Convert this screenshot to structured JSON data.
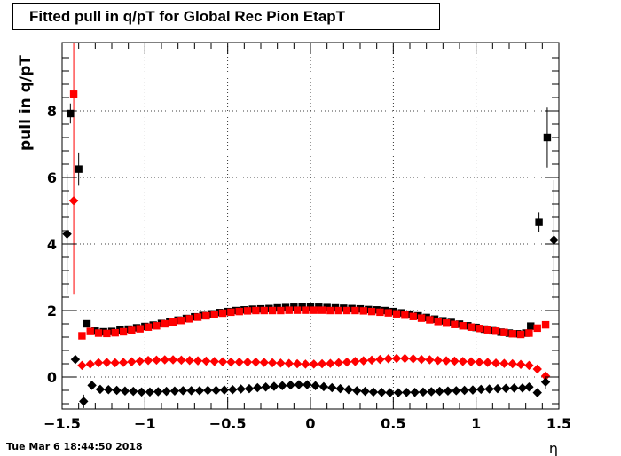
{
  "header": {
    "title": "Fitted pull in q/pT for Global Rec Pion EtapT"
  },
  "footer": {
    "timestamp": "Tue Mar  6 18:44:50 2018"
  },
  "chart_data": {
    "type": "scatter",
    "title": "Fitted pull in q/pT for Global Rec Pion EtapT",
    "xlabel": "η",
    "ylabel": "pull in q/pT",
    "xlim": [
      -1.5,
      1.5
    ],
    "ylim": [
      -0.95,
      10.0
    ],
    "xticks": [
      -1.5,
      -1,
      -0.5,
      0,
      0.5,
      1,
      1.5
    ],
    "xtick_labels": [
      "−1.5",
      "−1",
      "−0.5",
      "0",
      "0.5",
      "1",
      "1.5"
    ],
    "yticks": [
      0,
      2,
      4,
      6,
      8
    ],
    "ytick_labels": [
      "0",
      "2",
      "4",
      "6",
      "8"
    ],
    "grid": true,
    "series": [
      {
        "marker": "square",
        "color": "#000000",
        "points": [
          [
            -1.45,
            7.92,
            0.3
          ],
          [
            -1.4,
            6.25,
            0.5
          ],
          [
            -1.35,
            1.6,
            0
          ],
          [
            -1.3,
            1.38,
            0
          ],
          [
            -1.25,
            1.36,
            0
          ],
          [
            -1.2,
            1.37,
            0
          ],
          [
            -1.15,
            1.41,
            0
          ],
          [
            -1.1,
            1.44,
            0
          ],
          [
            -1.05,
            1.48,
            0
          ],
          [
            -1.0,
            1.52,
            0
          ],
          [
            -0.95,
            1.56,
            0
          ],
          [
            -0.9,
            1.61,
            0
          ],
          [
            -0.85,
            1.66,
            0
          ],
          [
            -0.8,
            1.71,
            0
          ],
          [
            -0.75,
            1.76,
            0
          ],
          [
            -0.7,
            1.81,
            0
          ],
          [
            -0.65,
            1.85,
            0
          ],
          [
            -0.6,
            1.9,
            0
          ],
          [
            -0.55,
            1.94,
            0
          ],
          [
            -0.5,
            1.97,
            0
          ],
          [
            -0.45,
            2.0,
            0
          ],
          [
            -0.4,
            2.02,
            0
          ],
          [
            -0.35,
            2.04,
            0
          ],
          [
            -0.3,
            2.05,
            0
          ],
          [
            -0.25,
            2.06,
            0
          ],
          [
            -0.2,
            2.08,
            0
          ],
          [
            -0.15,
            2.09,
            0
          ],
          [
            -0.1,
            2.1,
            0
          ],
          [
            -0.05,
            2.11,
            0
          ],
          [
            0.0,
            2.11,
            0
          ],
          [
            0.05,
            2.1,
            0
          ],
          [
            0.1,
            2.09,
            0
          ],
          [
            0.15,
            2.08,
            0
          ],
          [
            0.2,
            2.07,
            0
          ],
          [
            0.25,
            2.06,
            0
          ],
          [
            0.3,
            2.05,
            0
          ],
          [
            0.35,
            2.03,
            0
          ],
          [
            0.4,
            2.02,
            0
          ],
          [
            0.45,
            2.0,
            0
          ],
          [
            0.5,
            1.97,
            0
          ],
          [
            0.55,
            1.93,
            0
          ],
          [
            0.6,
            1.89,
            0
          ],
          [
            0.65,
            1.84,
            0
          ],
          [
            0.7,
            1.79,
            0
          ],
          [
            0.75,
            1.74,
            0
          ],
          [
            0.8,
            1.69,
            0
          ],
          [
            0.85,
            1.64,
            0
          ],
          [
            0.9,
            1.59,
            0
          ],
          [
            0.95,
            1.54,
            0
          ],
          [
            1.0,
            1.49,
            0
          ],
          [
            1.05,
            1.44,
            0
          ],
          [
            1.1,
            1.39,
            0
          ],
          [
            1.15,
            1.35,
            0
          ],
          [
            1.2,
            1.32,
            0
          ],
          [
            1.25,
            1.3,
            0
          ],
          [
            1.3,
            1.32,
            0
          ],
          [
            1.33,
            1.53,
            0
          ],
          [
            1.38,
            4.65,
            0.3
          ],
          [
            1.43,
            7.2,
            0.9
          ]
        ]
      },
      {
        "marker": "square",
        "color": "#ff0000",
        "points": [
          [
            -1.43,
            8.5,
            6.0
          ],
          [
            -1.38,
            1.24,
            0
          ],
          [
            -1.33,
            1.37,
            0
          ],
          [
            -1.28,
            1.32,
            0
          ],
          [
            -1.23,
            1.31,
            0
          ],
          [
            -1.18,
            1.33,
            0
          ],
          [
            -1.13,
            1.36,
            0
          ],
          [
            -1.08,
            1.4,
            0
          ],
          [
            -1.03,
            1.45,
            0
          ],
          [
            -0.98,
            1.5,
            0
          ],
          [
            -0.93,
            1.54,
            0
          ],
          [
            -0.88,
            1.6,
            0
          ],
          [
            -0.83,
            1.65,
            0
          ],
          [
            -0.78,
            1.7,
            0
          ],
          [
            -0.73,
            1.75,
            0
          ],
          [
            -0.68,
            1.8,
            0
          ],
          [
            -0.63,
            1.84,
            0
          ],
          [
            -0.58,
            1.88,
            0
          ],
          [
            -0.53,
            1.92,
            0
          ],
          [
            -0.48,
            1.95,
            0
          ],
          [
            -0.43,
            1.97,
            0
          ],
          [
            -0.38,
            1.99,
            0
          ],
          [
            -0.33,
            2.0,
            0
          ],
          [
            -0.28,
            2.0,
            0
          ],
          [
            -0.23,
            2.0,
            0
          ],
          [
            -0.18,
            2.0,
            0
          ],
          [
            -0.13,
            2.01,
            0
          ],
          [
            -0.08,
            2.01,
            0
          ],
          [
            -0.03,
            2.01,
            0
          ],
          [
            0.02,
            2.01,
            0
          ],
          [
            0.07,
            2.01,
            0
          ],
          [
            0.12,
            2.0,
            0
          ],
          [
            0.17,
            2.0,
            0
          ],
          [
            0.22,
            2.0,
            0
          ],
          [
            0.27,
            2.0,
            0
          ],
          [
            0.32,
            1.99,
            0
          ],
          [
            0.37,
            1.97,
            0
          ],
          [
            0.42,
            1.95,
            0
          ],
          [
            0.47,
            1.93,
            0
          ],
          [
            0.52,
            1.9,
            0
          ],
          [
            0.57,
            1.86,
            0
          ],
          [
            0.62,
            1.82,
            0
          ],
          [
            0.67,
            1.77,
            0
          ],
          [
            0.72,
            1.72,
            0
          ],
          [
            0.77,
            1.67,
            0
          ],
          [
            0.82,
            1.62,
            0
          ],
          [
            0.87,
            1.58,
            0
          ],
          [
            0.92,
            1.54,
            0
          ],
          [
            0.97,
            1.5,
            0
          ],
          [
            1.02,
            1.46,
            0
          ],
          [
            1.07,
            1.42,
            0
          ],
          [
            1.12,
            1.38,
            0
          ],
          [
            1.17,
            1.34,
            0
          ],
          [
            1.22,
            1.3,
            0
          ],
          [
            1.27,
            1.28,
            0
          ],
          [
            1.32,
            1.32,
            0
          ],
          [
            1.37,
            1.47,
            0
          ],
          [
            1.42,
            1.57,
            0
          ]
        ]
      },
      {
        "marker": "diamond",
        "color": "#ff0000",
        "points": [
          [
            -1.43,
            5.3,
            0
          ],
          [
            -1.38,
            0.35,
            0
          ],
          [
            -1.33,
            0.39,
            0
          ],
          [
            -1.28,
            0.43,
            0
          ],
          [
            -1.23,
            0.44,
            0
          ],
          [
            -1.18,
            0.43,
            0
          ],
          [
            -1.13,
            0.44,
            0
          ],
          [
            -1.08,
            0.46,
            0
          ],
          [
            -1.03,
            0.48,
            0
          ],
          [
            -0.98,
            0.5,
            0
          ],
          [
            -0.93,
            0.51,
            0
          ],
          [
            -0.88,
            0.52,
            0
          ],
          [
            -0.83,
            0.52,
            0
          ],
          [
            -0.78,
            0.51,
            0
          ],
          [
            -0.73,
            0.5,
            0
          ],
          [
            -0.68,
            0.49,
            0
          ],
          [
            -0.63,
            0.48,
            0
          ],
          [
            -0.58,
            0.47,
            0
          ],
          [
            -0.53,
            0.46,
            0
          ],
          [
            -0.48,
            0.45,
            0
          ],
          [
            -0.43,
            0.45,
            0
          ],
          [
            -0.38,
            0.45,
            0
          ],
          [
            -0.33,
            0.45,
            0
          ],
          [
            -0.28,
            0.44,
            0
          ],
          [
            -0.23,
            0.43,
            0
          ],
          [
            -0.18,
            0.42,
            0
          ],
          [
            -0.13,
            0.41,
            0
          ],
          [
            -0.08,
            0.4,
            0
          ],
          [
            -0.03,
            0.39,
            0
          ],
          [
            0.02,
            0.39,
            0
          ],
          [
            0.07,
            0.4,
            0
          ],
          [
            0.12,
            0.41,
            0
          ],
          [
            0.17,
            0.43,
            0
          ],
          [
            0.22,
            0.45,
            0
          ],
          [
            0.27,
            0.47,
            0
          ],
          [
            0.32,
            0.49,
            0
          ],
          [
            0.37,
            0.51,
            0
          ],
          [
            0.42,
            0.53,
            0
          ],
          [
            0.47,
            0.55,
            0
          ],
          [
            0.52,
            0.56,
            0
          ],
          [
            0.57,
            0.56,
            0
          ],
          [
            0.62,
            0.55,
            0
          ],
          [
            0.67,
            0.53,
            0
          ],
          [
            0.72,
            0.52,
            0
          ],
          [
            0.77,
            0.5,
            0
          ],
          [
            0.82,
            0.49,
            0
          ],
          [
            0.87,
            0.48,
            0
          ],
          [
            0.92,
            0.47,
            0
          ],
          [
            0.97,
            0.46,
            0
          ],
          [
            1.02,
            0.45,
            0
          ],
          [
            1.07,
            0.44,
            0
          ],
          [
            1.12,
            0.42,
            0
          ],
          [
            1.17,
            0.41,
            0
          ],
          [
            1.22,
            0.4,
            0
          ],
          [
            1.27,
            0.38,
            0
          ],
          [
            1.32,
            0.35,
            0
          ],
          [
            1.37,
            0.24,
            0
          ],
          [
            1.42,
            0.03,
            0
          ]
        ]
      },
      {
        "marker": "diamond",
        "color": "#000000",
        "points": [
          [
            -1.47,
            4.3,
            1.8
          ],
          [
            -1.42,
            0.53,
            0
          ],
          [
            -1.37,
            -0.73,
            0.2
          ],
          [
            -1.32,
            -0.25,
            0
          ],
          [
            -1.27,
            -0.37,
            0
          ],
          [
            -1.22,
            -0.38,
            0
          ],
          [
            -1.17,
            -0.4,
            0
          ],
          [
            -1.12,
            -0.42,
            0
          ],
          [
            -1.07,
            -0.43,
            0
          ],
          [
            -1.02,
            -0.45,
            0
          ],
          [
            -0.97,
            -0.45,
            0
          ],
          [
            -0.92,
            -0.44,
            0
          ],
          [
            -0.87,
            -0.43,
            0
          ],
          [
            -0.82,
            -0.42,
            0
          ],
          [
            -0.77,
            -0.41,
            0
          ],
          [
            -0.72,
            -0.41,
            0
          ],
          [
            -0.67,
            -0.41,
            0
          ],
          [
            -0.62,
            -0.4,
            0
          ],
          [
            -0.57,
            -0.4,
            0
          ],
          [
            -0.52,
            -0.39,
            0
          ],
          [
            -0.47,
            -0.38,
            0
          ],
          [
            -0.42,
            -0.36,
            0
          ],
          [
            -0.37,
            -0.35,
            0
          ],
          [
            -0.32,
            -0.32,
            0
          ],
          [
            -0.27,
            -0.3,
            0
          ],
          [
            -0.22,
            -0.28,
            0
          ],
          [
            -0.17,
            -0.26,
            0
          ],
          [
            -0.12,
            -0.24,
            0
          ],
          [
            -0.07,
            -0.23,
            0
          ],
          [
            -0.02,
            -0.23,
            0
          ],
          [
            0.03,
            -0.26,
            0
          ],
          [
            0.08,
            -0.29,
            0
          ],
          [
            0.13,
            -0.32,
            0
          ],
          [
            0.18,
            -0.35,
            0
          ],
          [
            0.23,
            -0.38,
            0
          ],
          [
            0.28,
            -0.41,
            0
          ],
          [
            0.33,
            -0.43,
            0
          ],
          [
            0.38,
            -0.45,
            0
          ],
          [
            0.43,
            -0.46,
            0
          ],
          [
            0.48,
            -0.47,
            0
          ],
          [
            0.53,
            -0.47,
            0
          ],
          [
            0.58,
            -0.46,
            0
          ],
          [
            0.63,
            -0.46,
            0
          ],
          [
            0.68,
            -0.45,
            0
          ],
          [
            0.73,
            -0.44,
            0
          ],
          [
            0.78,
            -0.43,
            0
          ],
          [
            0.83,
            -0.42,
            0
          ],
          [
            0.88,
            -0.41,
            0
          ],
          [
            0.93,
            -0.4,
            0
          ],
          [
            0.98,
            -0.39,
            0
          ],
          [
            1.03,
            -0.37,
            0
          ],
          [
            1.08,
            -0.36,
            0
          ],
          [
            1.13,
            -0.35,
            0
          ],
          [
            1.18,
            -0.34,
            0
          ],
          [
            1.23,
            -0.33,
            0
          ],
          [
            1.28,
            -0.33,
            0
          ],
          [
            1.32,
            -0.3,
            0
          ],
          [
            1.37,
            -0.47,
            0.1
          ],
          [
            1.42,
            -0.15,
            0.2
          ],
          [
            1.47,
            4.12,
            1.8
          ]
        ]
      }
    ]
  }
}
